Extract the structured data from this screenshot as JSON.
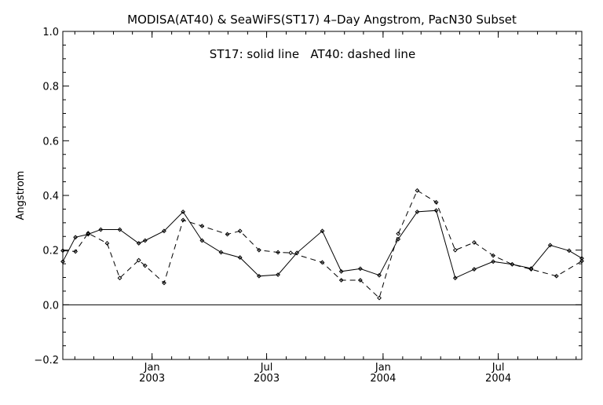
{
  "chart_data": {
    "type": "line",
    "title": "MODISA(AT40) & SeaWiFS(ST17) 4–Day Angstrom, PacN30 Subset",
    "annotation": "ST17: solid line   AT40: dashed line",
    "xlabel": "",
    "ylabel": "Angstrom",
    "ylim": [
      -0.2,
      1.0
    ],
    "y_ticks": [
      "−0.2",
      "0.0",
      "0.2",
      "0.4",
      "0.6",
      "0.8",
      "1.0"
    ],
    "y_tick_values": [
      -0.2,
      0.0,
      0.2,
      0.4,
      0.6,
      0.8,
      1.0
    ],
    "xlim": [
      "2002-08-13",
      "2004-11-10"
    ],
    "x_ticks": [
      {
        "date": "2003-01-01",
        "month": "Jan",
        "year": "2003"
      },
      {
        "date": "2003-07-01",
        "month": "Jul",
        "year": "2003"
      },
      {
        "date": "2004-01-01",
        "month": "Jan",
        "year": "2004"
      },
      {
        "date": "2004-07-01",
        "month": "Jul",
        "year": "2004"
      }
    ],
    "zero_line": 0.0,
    "grid": false,
    "series": [
      {
        "name": "ST17",
        "style": "solid",
        "color": "#000000",
        "points": [
          {
            "x": "2002-08-13",
            "y": 0.158
          },
          {
            "x": "2002-09-02",
            "y": 0.247
          },
          {
            "x": "2002-09-22",
            "y": 0.258
          },
          {
            "x": "2002-10-12",
            "y": 0.275
          },
          {
            "x": "2002-11-11",
            "y": 0.275
          },
          {
            "x": "2002-12-11",
            "y": 0.225
          },
          {
            "x": "2002-12-21",
            "y": 0.235
          },
          {
            "x": "2003-01-20",
            "y": 0.27
          },
          {
            "x": "2003-02-19",
            "y": 0.34
          },
          {
            "x": "2003-03-21",
            "y": 0.235
          },
          {
            "x": "2003-04-20",
            "y": 0.192
          },
          {
            "x": "2003-05-20",
            "y": 0.173
          },
          {
            "x": "2003-06-19",
            "y": 0.105
          },
          {
            "x": "2003-07-19",
            "y": 0.11
          },
          {
            "x": "2003-08-18",
            "y": 0.19
          },
          {
            "x": "2003-09-27",
            "y": 0.27
          },
          {
            "x": "2003-10-27",
            "y": 0.122
          },
          {
            "x": "2003-11-26",
            "y": 0.132
          },
          {
            "x": "2003-12-26",
            "y": 0.108
          },
          {
            "x": "2004-01-25",
            "y": 0.24
          },
          {
            "x": "2004-02-24",
            "y": 0.34
          },
          {
            "x": "2004-03-25",
            "y": 0.345
          },
          {
            "x": "2004-04-24",
            "y": 0.098
          },
          {
            "x": "2004-05-24",
            "y": 0.13
          },
          {
            "x": "2004-06-23",
            "y": 0.158
          },
          {
            "x": "2004-07-23",
            "y": 0.148
          },
          {
            "x": "2004-08-22",
            "y": 0.133
          },
          {
            "x": "2004-09-21",
            "y": 0.218
          },
          {
            "x": "2004-10-21",
            "y": 0.198
          },
          {
            "x": "2004-11-10",
            "y": 0.17
          }
        ]
      },
      {
        "name": "AT40",
        "style": "dashed",
        "color": "#000000",
        "points": [
          {
            "x": "2002-08-13",
            "y": 0.198
          },
          {
            "x": "2002-09-02",
            "y": 0.195
          },
          {
            "x": "2002-09-22",
            "y": 0.262
          },
          {
            "x": "2002-10-22",
            "y": 0.225
          },
          {
            "x": "2002-11-11",
            "y": 0.098
          },
          {
            "x": "2002-12-11",
            "y": 0.163
          },
          {
            "x": "2002-12-21",
            "y": 0.143
          },
          {
            "x": "2003-01-20",
            "y": 0.08
          },
          {
            "x": "2003-02-19",
            "y": 0.31
          },
          {
            "x": "2003-03-21",
            "y": 0.288
          },
          {
            "x": "2003-04-30",
            "y": 0.258
          },
          {
            "x": "2003-05-20",
            "y": 0.27
          },
          {
            "x": "2003-06-19",
            "y": 0.2
          },
          {
            "x": "2003-07-19",
            "y": 0.192
          },
          {
            "x": "2003-08-08",
            "y": 0.19
          },
          {
            "x": "2003-09-27",
            "y": 0.155
          },
          {
            "x": "2003-10-27",
            "y": 0.09
          },
          {
            "x": "2003-11-26",
            "y": 0.09
          },
          {
            "x": "2003-12-26",
            "y": 0.025
          },
          {
            "x": "2004-01-25",
            "y": 0.26
          },
          {
            "x": "2004-02-24",
            "y": 0.418
          },
          {
            "x": "2004-03-25",
            "y": 0.375
          },
          {
            "x": "2004-04-24",
            "y": 0.2
          },
          {
            "x": "2004-05-24",
            "y": 0.228
          },
          {
            "x": "2004-06-23",
            "y": 0.18
          },
          {
            "x": "2004-07-23",
            "y": 0.148
          },
          {
            "x": "2004-08-22",
            "y": 0.13
          },
          {
            "x": "2004-10-01",
            "y": 0.105
          },
          {
            "x": "2004-11-10",
            "y": 0.16
          }
        ]
      }
    ]
  }
}
